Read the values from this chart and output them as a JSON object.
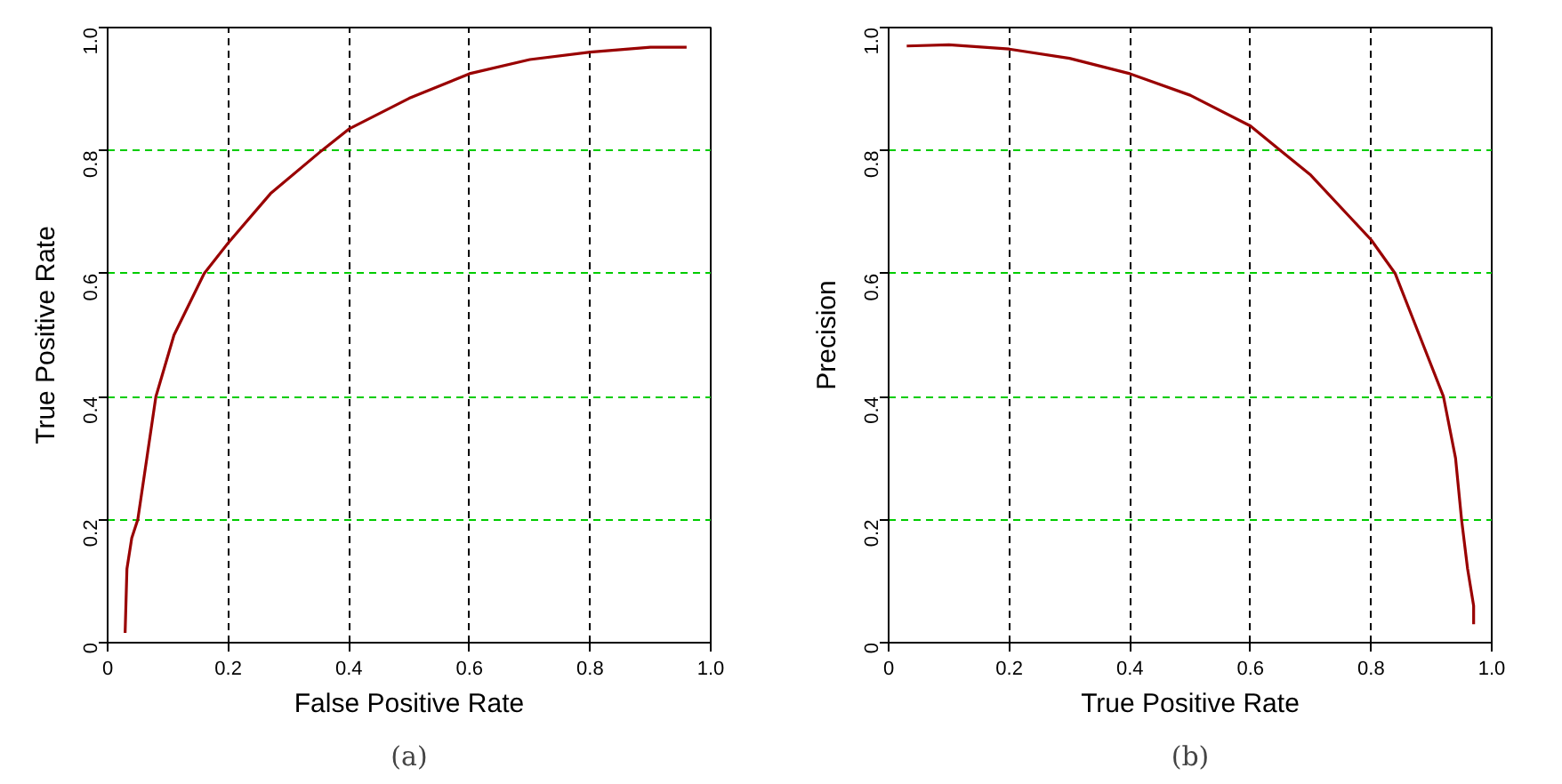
{
  "chart_data": [
    {
      "type": "line",
      "xlabel": "False Positive Rate",
      "ylabel": "True Positive Rate",
      "annotations": [
        "(a)"
      ],
      "x": [
        0.029,
        0.032,
        0.04,
        0.05,
        0.065,
        0.08,
        0.11,
        0.16,
        0.2,
        0.27,
        0.355,
        0.4,
        0.5,
        0.6,
        0.7,
        0.8,
        0.9,
        0.96
      ],
      "series": [
        {
          "color": "#990000",
          "values": [
            0.016,
            0.12,
            0.17,
            0.2,
            0.3,
            0.4,
            0.5,
            0.6,
            0.65,
            0.73,
            0.8,
            0.835,
            0.885,
            0.925,
            0.948,
            0.96,
            0.968,
            0.968
          ]
        }
      ],
      "xlim": [
        0,
        1
      ],
      "ylim": [
        0,
        1
      ],
      "xticks": [
        0,
        0.2,
        0.4,
        0.6,
        0.8,
        {
          "value": 1,
          "label": "1.0"
        }
      ],
      "yticks": [
        0,
        0.2,
        0.4,
        0.6,
        0.8,
        {
          "value": 1,
          "label": "1.0"
        }
      ],
      "grid": true,
      "marker": "none",
      "line_style": "solid"
    },
    {
      "type": "line",
      "xlabel": "True Positive Rate",
      "ylabel": "Precision",
      "annotations": [
        "(b)"
      ],
      "x": [
        0.03,
        0.1,
        0.2,
        0.3,
        0.4,
        0.5,
        0.6,
        0.65,
        0.7,
        0.8,
        0.84,
        0.88,
        0.92,
        0.94,
        0.95,
        0.96,
        0.97,
        0.97
      ],
      "series": [
        {
          "color": "#990000",
          "values": [
            0.97,
            0.972,
            0.965,
            0.95,
            0.925,
            0.89,
            0.84,
            0.8,
            0.76,
            0.655,
            0.6,
            0.5,
            0.4,
            0.3,
            0.2,
            0.12,
            0.06,
            0.03
          ]
        }
      ],
      "xlim": [
        0,
        1
      ],
      "ylim": [
        0,
        1
      ],
      "xticks": [
        0,
        0.2,
        0.4,
        0.6,
        0.8,
        {
          "value": 1,
          "label": "1.0"
        }
      ],
      "yticks": [
        0,
        0.2,
        0.4,
        0.6,
        0.8,
        {
          "value": 1,
          "label": "1.0"
        }
      ],
      "grid": true,
      "marker": "none",
      "line_style": "solid"
    }
  ]
}
